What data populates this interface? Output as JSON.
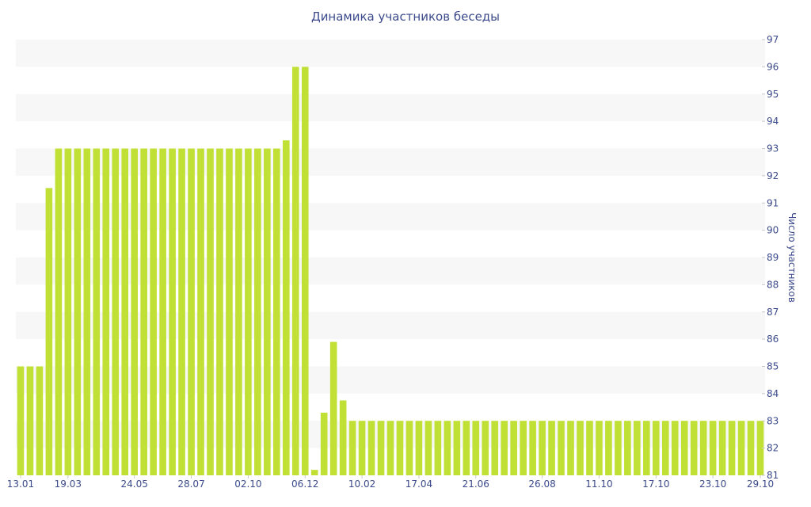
{
  "chart_data": {
    "type": "bar",
    "title": "Динамика участников беседы",
    "xlabel": "",
    "ylabel": "Число участников",
    "ylim": [
      81,
      97
    ],
    "y_ticks": [
      81,
      82,
      83,
      84,
      85,
      86,
      87,
      88,
      89,
      90,
      91,
      92,
      93,
      94,
      95,
      96,
      97
    ],
    "y_axis_position": "right",
    "grid": "alternating horizontal bands",
    "bar_color": "#c0e035",
    "band_color": "#f7f7f7",
    "text_color": "#3b4a8c",
    "x_tick_labels": [
      {
        "label": "13.01",
        "index": 0
      },
      {
        "label": "19.03",
        "index": 5
      },
      {
        "label": "24.05",
        "index": 12
      },
      {
        "label": "28.07",
        "index": 18
      },
      {
        "label": "02.10",
        "index": 24
      },
      {
        "label": "06.12",
        "index": 30
      },
      {
        "label": "10.02",
        "index": 36
      },
      {
        "label": "17.04",
        "index": 42
      },
      {
        "label": "21.06",
        "index": 48
      },
      {
        "label": "26.08",
        "index": 55
      },
      {
        "label": "11.10",
        "index": 61
      },
      {
        "label": "17.10",
        "index": 67
      },
      {
        "label": "23.10",
        "index": 73
      },
      {
        "label": "29.10",
        "index": 78
      }
    ],
    "values": [
      85,
      85,
      85,
      91.55,
      93,
      93,
      93,
      93,
      93,
      93,
      93,
      93,
      93,
      93,
      93,
      93,
      93,
      93,
      93,
      93,
      93,
      93,
      93,
      93,
      93,
      93,
      93,
      93,
      93.3,
      96,
      96,
      81.2,
      83.3,
      85.9,
      83.75,
      83,
      83,
      83,
      83,
      83,
      83,
      83,
      83,
      83,
      83,
      83,
      83,
      83,
      83,
      83,
      83,
      83,
      83,
      83,
      83,
      83,
      83,
      83,
      83,
      83,
      83,
      83,
      83,
      83,
      83,
      83,
      83,
      83,
      83,
      83,
      83,
      83,
      83,
      83,
      83,
      83,
      83,
      83,
      83
    ]
  }
}
